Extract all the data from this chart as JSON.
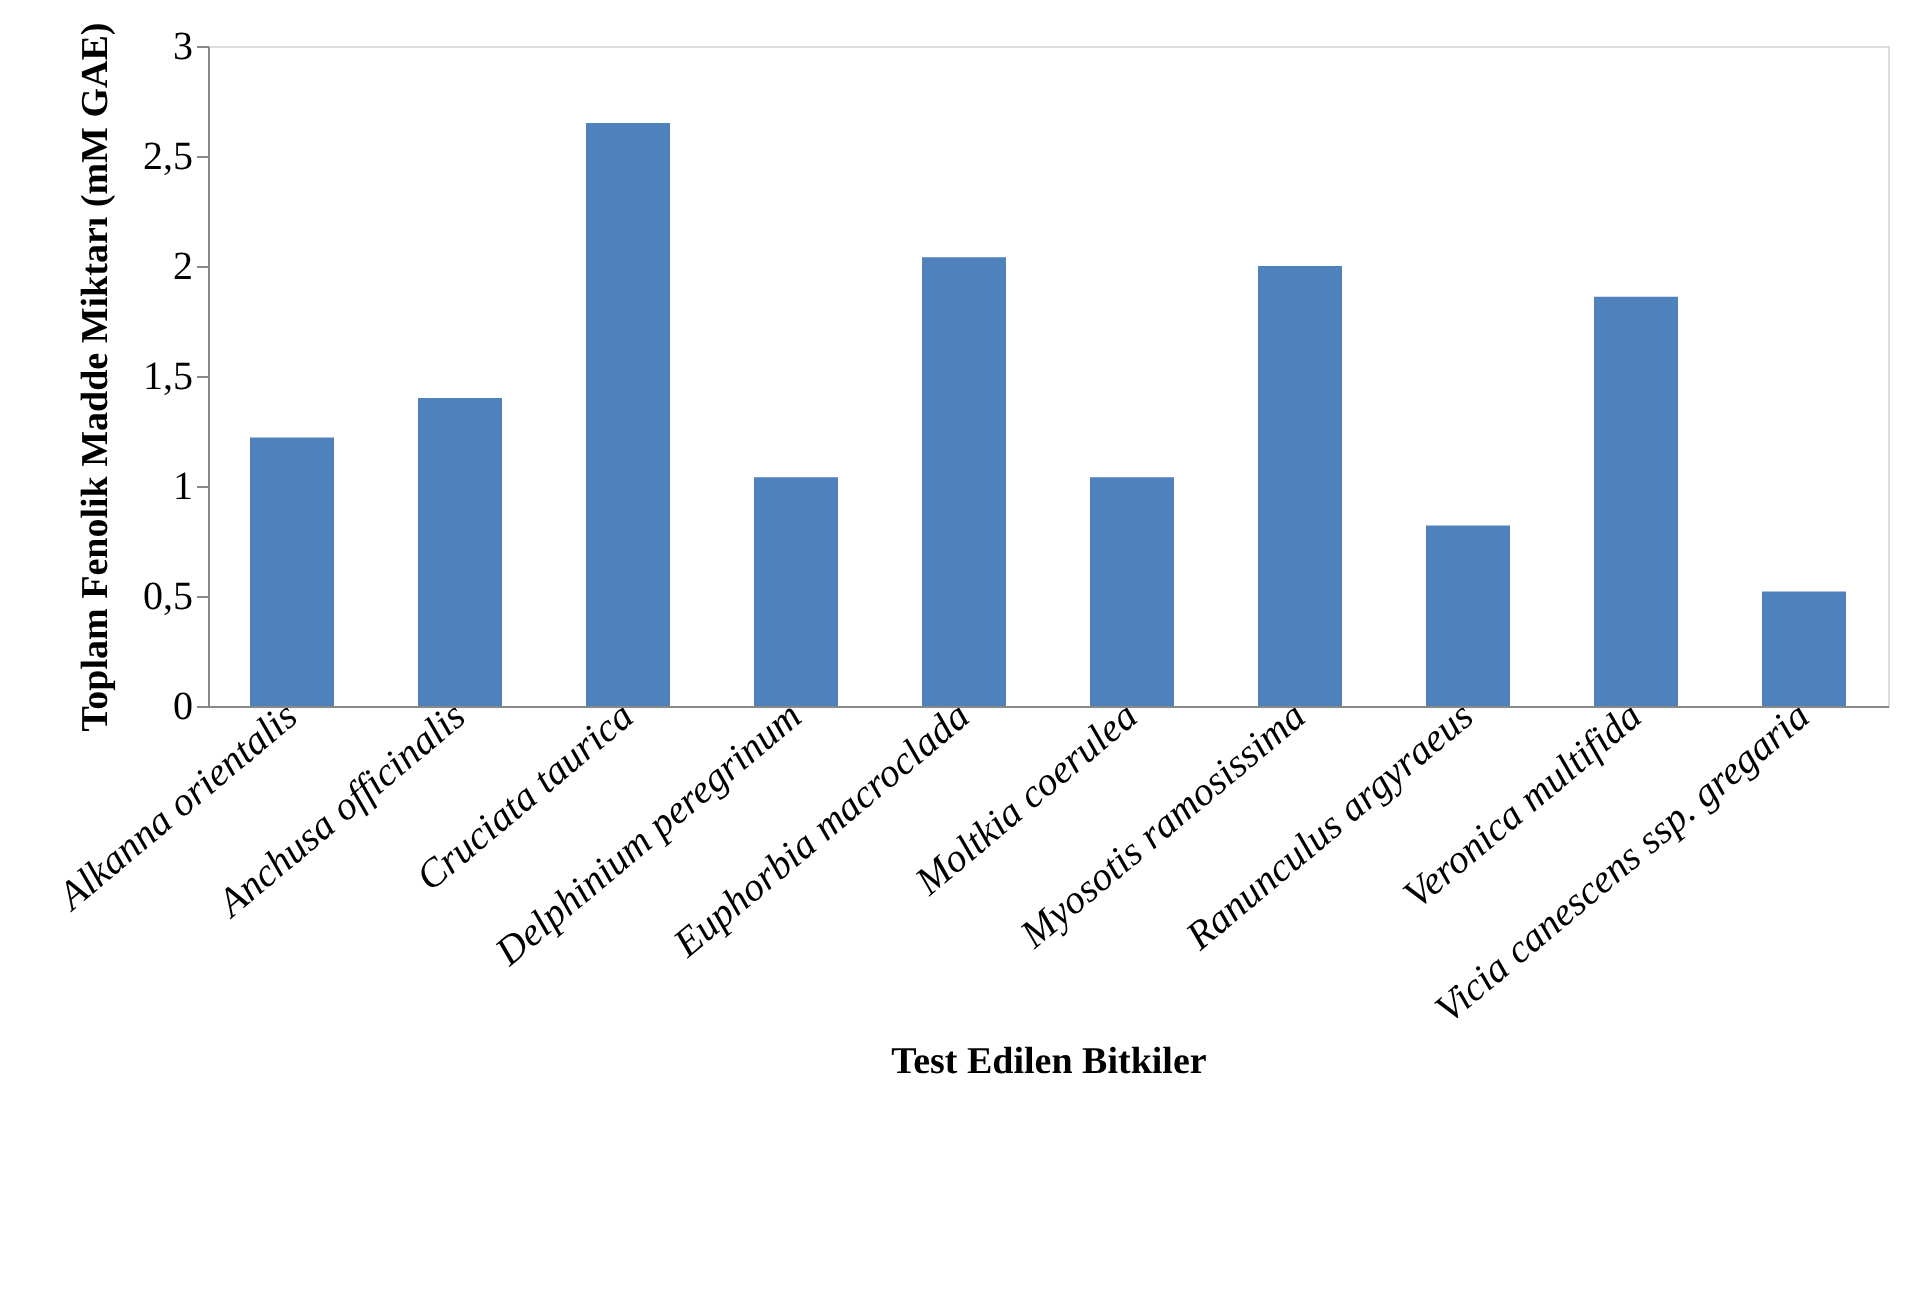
{
  "chart_data": {
    "type": "bar",
    "xlabel": "Test Edilen Bitkiler",
    "ylabel": "Toplam Fenolik Madde Miktarı (mM GAE)",
    "categories": [
      "Alkanna orientalis",
      "Anchusa officinalis",
      "Cruciata taurica",
      "Delphinium peregrinum",
      "Euphorbia macroclada",
      "Moltkia coerulea",
      "Myosotis ramosissima",
      "Ranunculus argyraeus",
      "Veronica multifida",
      "Vicia canescens ssp. gregaria"
    ],
    "values": [
      1.22,
      1.4,
      2.65,
      1.04,
      2.04,
      1.04,
      2.0,
      0.82,
      1.86,
      0.52
    ],
    "color": "#4f81bd",
    "ylim": [
      0,
      3
    ],
    "yticks": [
      0,
      {
        "value": 0.5,
        "label": "0,5"
      },
      1,
      {
        "value": 1.5,
        "label": "1,5"
      },
      2,
      {
        "value": 2.5,
        "label": "2,5"
      },
      3
    ],
    "grid": false
  }
}
